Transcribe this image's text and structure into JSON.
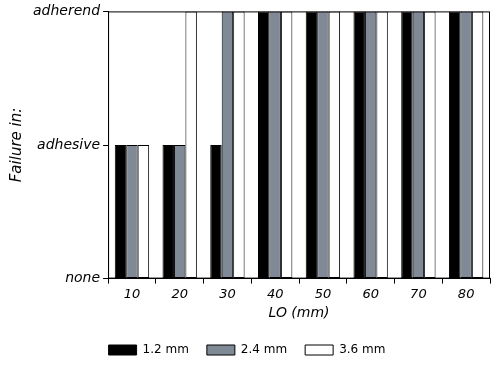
{
  "chart_data": {
    "type": "bar",
    "x_label": "LO (mm)",
    "y_label": "Failure in:",
    "categories": [
      "10",
      "20",
      "30",
      "40",
      "50",
      "60",
      "70",
      "80"
    ],
    "series": [
      {
        "name": "1.2 mm",
        "color": "#000000",
        "values": [
          1,
          1,
          1,
          2,
          2,
          2,
          2,
          2
        ]
      },
      {
        "name": "2.4 mm",
        "color": "#7f8a96",
        "values": [
          1,
          1,
          2,
          2,
          2,
          2,
          2,
          2
        ]
      },
      {
        "name": "3.6 mm",
        "color": "#ffffff",
        "values": [
          1,
          2,
          2,
          2,
          2,
          2,
          2,
          2
        ]
      }
    ],
    "ylim": [
      0,
      2
    ],
    "yticks": [
      {
        "value": 0,
        "label": "none"
      },
      {
        "value": 1,
        "label": "adhesive"
      },
      {
        "value": 2,
        "label": "adherend"
      }
    ],
    "grid": false,
    "legend": "bottom"
  }
}
